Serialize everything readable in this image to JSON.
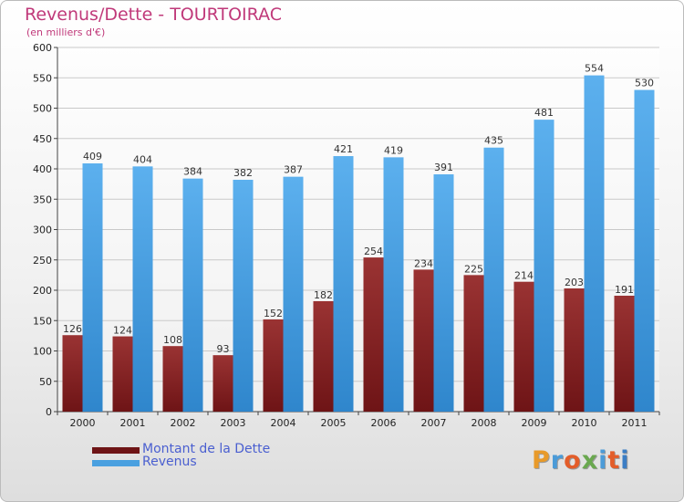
{
  "header": {
    "title": "Revenus/Dette - TOURTOIRAC",
    "subtitle": "(en milliers d'€)"
  },
  "brand": {
    "name": "Proxiti",
    "letter_colors": [
      "#e89a2a",
      "#4b9bd8",
      "#e35d2a",
      "#6aa84f",
      "#4b9bd8",
      "#e35d2a",
      "#3b7dc4"
    ]
  },
  "colors": {
    "dette": "#6e1416",
    "revenus": "#4aa0e0"
  },
  "chart_data": {
    "type": "bar",
    "title": "Revenus/Dette - TOURTOIRAC",
    "ylabel": "(en milliers d'€)",
    "xlabel": "",
    "ylim": [
      0,
      600
    ],
    "yticks": [
      0,
      50,
      100,
      150,
      200,
      250,
      300,
      350,
      400,
      450,
      500,
      550,
      600
    ],
    "grid": true,
    "categories": [
      "2000",
      "2001",
      "2002",
      "2003",
      "2004",
      "2005",
      "2006",
      "2007",
      "2008",
      "2009",
      "2010",
      "2011"
    ],
    "series": [
      {
        "name": "Montant de la Dette",
        "values": [
          126,
          124,
          108,
          93,
          152,
          182,
          254,
          234,
          225,
          214,
          203,
          191
        ]
      },
      {
        "name": "Revenus",
        "values": [
          409,
          404,
          384,
          382,
          387,
          421,
          419,
          391,
          435,
          481,
          554,
          530
        ]
      }
    ],
    "legend": "bottom-left"
  }
}
